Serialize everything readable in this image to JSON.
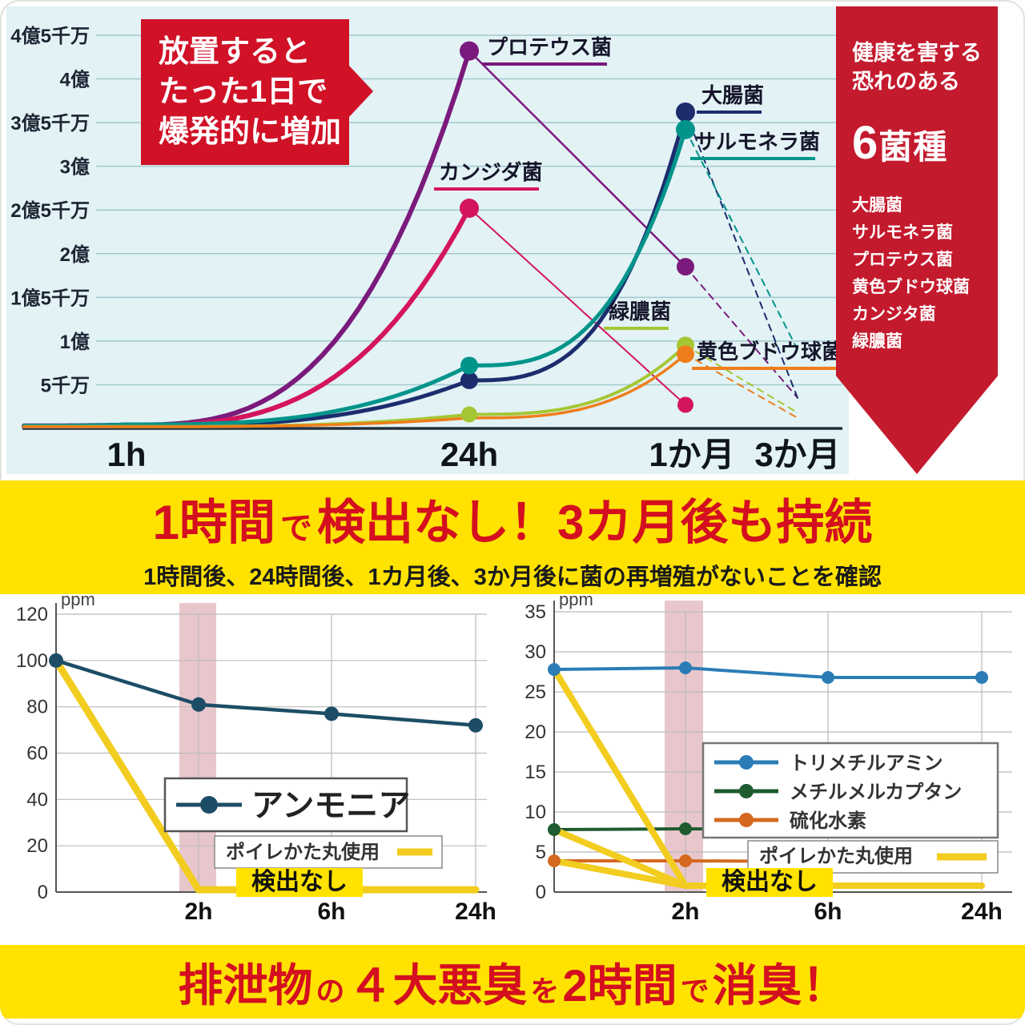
{
  "growth_callout": [
    "放置すると",
    "たった1日で",
    "爆発的に増加"
  ],
  "side_panel": {
    "title_line1": "健康を害する",
    "title_line2": "恐れのある",
    "count_number": "6",
    "count_unit": "菌種",
    "items": [
      "大腸菌",
      "サルモネラ菌",
      "プロテウス菌",
      "黄色ブドウ球菌",
      "カンジタ菌",
      "緑膿菌"
    ]
  },
  "mid_banner": {
    "p1": "1時間",
    "p2": "で",
    "p3": "検出なし！3カ月後も持続",
    "subtitle": "1時間後、24時間後、1カ月後、3か月後に菌の再増殖がないことを確認"
  },
  "bottom_banner": {
    "p1": "排泄物",
    "p2": "の",
    "p3": "４大悪臭",
    "p4": "を",
    "p5": "2時間",
    "p6": "で",
    "p7": "消臭！"
  },
  "chart_data": [
    {
      "type": "line",
      "x_categories": [
        "1h",
        "24h",
        "1か月",
        "3か月"
      ],
      "ylim": [
        0,
        4.5
      ],
      "y_unit": "億",
      "y_ticks": [
        {
          "label": "4億5千万",
          "value": 4.5
        },
        {
          "label": "4億",
          "value": 4.0
        },
        {
          "label": "3億5千万",
          "value": 3.5
        },
        {
          "label": "3億",
          "value": 3.0
        },
        {
          "label": "2億5千万",
          "value": 2.5
        },
        {
          "label": "2億",
          "value": 2.0
        },
        {
          "label": "1億5千万",
          "value": 1.5
        },
        {
          "label": "1億",
          "value": 1.0
        },
        {
          "label": "5千万",
          "value": 0.5
        }
      ],
      "series": [
        {
          "name": "プロテウス菌",
          "color": "#7a1a7c",
          "segments": [
            {
              "pts": [
                [
                  "edge",
                  0.03
                ],
                [
                  "1h",
                  0.04
                ],
                [
                  "24h",
                  4.32
                ]
              ],
              "w": 6
            },
            {
              "pts": [
                [
                  "24h",
                  4.32
                ],
                [
                  "1か月",
                  1.85
                ]
              ],
              "w": 2.5
            },
            {
              "pts": [
                [
                  "1か月",
                  1.85
                ],
                [
                  "3か月",
                  0.35
                ]
              ],
              "w": 2,
              "dash": true
            }
          ],
          "dots": [
            [
              "24h",
              4.32,
              12
            ],
            [
              "1か月",
              1.85,
              11
            ]
          ]
        },
        {
          "name": "カンジダ菌",
          "color": "#d4155e",
          "segments": [
            {
              "pts": [
                [
                  "edge",
                  0.025
                ],
                [
                  "1h",
                  0.035
                ],
                [
                  "24h",
                  2.52
                ]
              ],
              "w": 6
            },
            {
              "pts": [
                [
                  "24h",
                  2.52
                ],
                [
                  "1か月",
                  0.27
                ]
              ],
              "w": 2
            }
          ],
          "dots": [
            [
              "24h",
              2.52,
              12
            ],
            [
              "1か月",
              0.27,
              10
            ]
          ]
        },
        {
          "name": "大腸菌",
          "color": "#1c2c6d",
          "segments": [
            {
              "pts": [
                [
                  "edge",
                  0.02
                ],
                [
                  "1h",
                  0.03
                ],
                [
                  "24h",
                  0.55
                ],
                [
                  "1か月",
                  3.62
                ]
              ],
              "w": 5
            },
            {
              "pts": [
                [
                  "1か月",
                  3.62
                ],
                [
                  "3か月",
                  0.35
                ]
              ],
              "w": 2,
              "dash": true
            }
          ],
          "dots": [
            [
              "24h",
              0.55,
              11
            ],
            [
              "1か月",
              3.62,
              12
            ]
          ]
        },
        {
          "name": "サルモネラ菌",
          "color": "#00948a",
          "segments": [
            {
              "pts": [
                [
                  "edge",
                  0.03
                ],
                [
                  "1h",
                  0.045
                ],
                [
                  "24h",
                  0.72
                ],
                [
                  "1か月",
                  3.42
                ]
              ],
              "w": 5
            },
            {
              "pts": [
                [
                  "1か月",
                  3.42
                ],
                [
                  "3か月",
                  0.9
                ]
              ],
              "w": 2,
              "dash": true
            }
          ],
          "dots": [
            [
              "24h",
              0.72,
              11
            ],
            [
              "1か月",
              3.42,
              12
            ]
          ]
        },
        {
          "name": "緑膿菌",
          "color": "#a5c735",
          "segments": [
            {
              "pts": [
                [
                  "edge",
                  0.02
                ],
                [
                  "1h",
                  0.02
                ],
                [
                  "24h",
                  0.16
                ],
                [
                  "1か月",
                  0.95
                ]
              ],
              "w": 4
            },
            {
              "pts": [
                [
                  "1か月",
                  0.95
                ],
                [
                  "3か月",
                  0.18
                ]
              ],
              "w": 2,
              "dash": true
            }
          ],
          "dots": [
            [
              "24h",
              0.16,
              10
            ],
            [
              "1か月",
              0.95,
              11
            ]
          ]
        },
        {
          "name": "黄色ブドウ球菌",
          "color": "#ee7e1b",
          "segments": [
            {
              "pts": [
                [
                  "edge",
                  0.02
                ],
                [
                  "1h",
                  0.02
                ],
                [
                  "24h",
                  0.12
                ],
                [
                  "1か月",
                  0.85
                ]
              ],
              "w": 3.5
            },
            {
              "pts": [
                [
                  "1か月",
                  0.85
                ],
                [
                  "3か月",
                  0.12
                ]
              ],
              "w": 2,
              "dash": true
            }
          ],
          "dots": [
            [
              "1か月",
              0.85,
              11
            ]
          ]
        }
      ]
    },
    {
      "type": "line",
      "unit": "ppm",
      "ylim": [
        0,
        120
      ],
      "y_step": 20,
      "x_ticks": [
        "2h",
        "6h",
        "24h"
      ],
      "highlight_label": "検出なし",
      "series": [
        {
          "name": "アンモニア",
          "color": "#1d4d66",
          "width": 4.5,
          "dots": true,
          "points": [
            [
              0,
              100
            ],
            [
              2,
              81
            ],
            [
              6,
              77
            ],
            [
              24,
              72
            ]
          ]
        },
        {
          "name": "ポイレかた丸使用",
          "color": "#f2cd1f",
          "width": 9,
          "dots": false,
          "points": [
            [
              0,
              100
            ],
            [
              2,
              1
            ],
            [
              6,
              1
            ],
            [
              24,
              1
            ]
          ]
        }
      ]
    },
    {
      "type": "line",
      "unit": "ppm",
      "ylim": [
        0,
        35
      ],
      "y_step": 5,
      "x_ticks": [
        "2h",
        "6h",
        "24h"
      ],
      "highlight_label": "検出なし",
      "series": [
        {
          "name": "トリメチルアミン",
          "color": "#2b7cb5",
          "width": 4,
          "dots": true,
          "points": [
            [
              0,
              27.8
            ],
            [
              2,
              28
            ],
            [
              6,
              26.8
            ],
            [
              24,
              26.8
            ]
          ]
        },
        {
          "name": "メチルメルカプタン",
          "color": "#1e5b2f",
          "width": 4,
          "dots": true,
          "points": [
            [
              0,
              7.8
            ],
            [
              2,
              7.9
            ],
            [
              6,
              7.8
            ],
            [
              24,
              7.8
            ]
          ]
        },
        {
          "name": "硫化水素",
          "color": "#d4691f",
          "width": 4,
          "dots": true,
          "points": [
            [
              0,
              3.9
            ],
            [
              2,
              3.9
            ],
            [
              6,
              3.8
            ],
            [
              24,
              3.8
            ]
          ]
        },
        {
          "name": "ポイレかた丸使用",
          "color": "#f2cd1f",
          "width": 8,
          "dots": false,
          "points": [
            [
              0,
              27.8
            ],
            [
              2,
              0.8
            ],
            [
              6,
              0.8
            ],
            [
              24,
              0.8
            ]
          ],
          "extra_lines": [
            [
              [
                0,
                7.8
              ],
              [
                2,
                0.8
              ]
            ],
            [
              [
                0,
                3.9
              ],
              [
                2,
                0.8
              ]
            ]
          ]
        }
      ]
    }
  ]
}
